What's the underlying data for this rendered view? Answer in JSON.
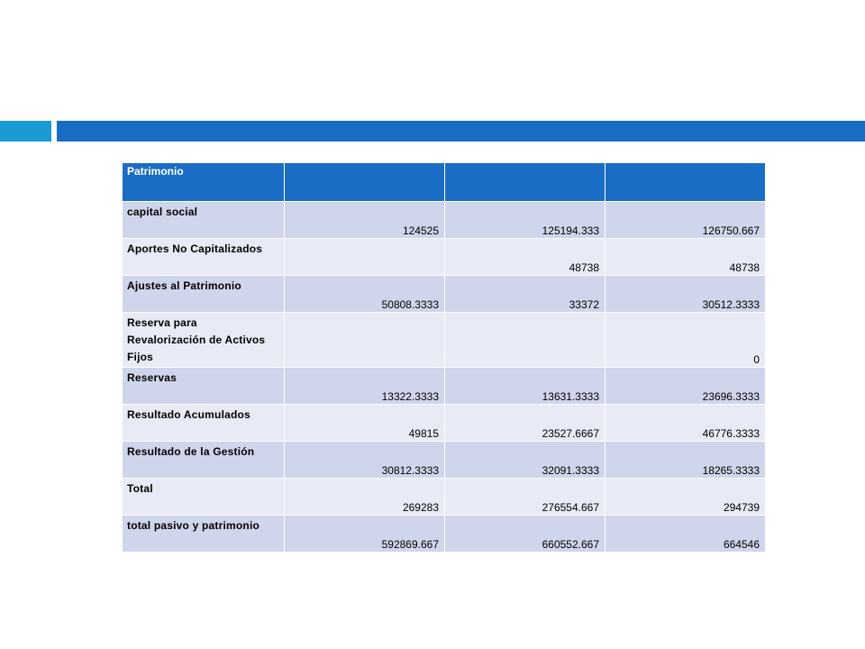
{
  "table": {
    "header": [
      "Patrimonio",
      "",
      "",
      ""
    ],
    "rows": [
      {
        "label": "capital social",
        "values": [
          "124525",
          "125194.333",
          "126750.667"
        ]
      },
      {
        "label": "Aportes No Capitalizados",
        "values": [
          "",
          "48738",
          "48738"
        ]
      },
      {
        "label": "Ajustes al Patrimonio",
        "values": [
          "50808.3333",
          "33372",
          "30512.3333"
        ]
      },
      {
        "label": "Reserva para Revalorización de Activos Fijos",
        "values": [
          "",
          "",
          "0"
        ]
      },
      {
        "label": "Reservas",
        "values": [
          "13322.3333",
          "13631.3333",
          "23696.3333"
        ]
      },
      {
        "label": "Resultado Acumulados",
        "values": [
          "49815",
          "23527.6667",
          "46776.3333"
        ]
      },
      {
        "label": "Resultado de la Gestión",
        "values": [
          "30812.3333",
          "32091.3333",
          "18265.3333"
        ]
      },
      {
        "label": "Total",
        "values": [
          "269283",
          "276554.667",
          "294739"
        ]
      },
      {
        "label": "total pasivo y patrimonio",
        "values": [
          "592869.667",
          "660552.667",
          "664546"
        ]
      }
    ]
  },
  "colors": {
    "accent_light": "#1b9ad6",
    "accent_dark": "#1a6dc4",
    "row_dark": "#cfd5ea",
    "row_light": "#e8ebf5"
  }
}
